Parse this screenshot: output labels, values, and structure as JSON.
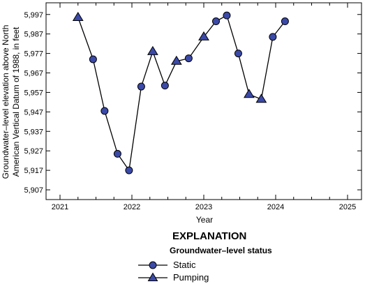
{
  "chart_data": {
    "type": "line",
    "title": "",
    "xlabel": "Year",
    "ylabel_lines": [
      "Groundwater–level elevation above North",
      "American Vertical Datum of 1988, in feet"
    ],
    "x_ticks": [
      "2021",
      "2022",
      "2023",
      "2024",
      "2025"
    ],
    "y_ticks": [
      "5,907",
      "5,917",
      "5,927",
      "5,937",
      "5,947",
      "5,957",
      "5,967",
      "5,977",
      "5,987",
      "5,997"
    ],
    "xlim": [
      2021,
      2025
    ],
    "ylim": [
      5902,
      6003
    ],
    "grid": false,
    "colors": {
      "marker_fill": "#3b4aa8",
      "marker_stroke": "#000000",
      "line": "#000000"
    },
    "points": [
      {
        "x": 2021.25,
        "y": 5995.5,
        "status": "Pumping"
      },
      {
        "x": 2021.46,
        "y": 5974.0,
        "status": "Static"
      },
      {
        "x": 2021.62,
        "y": 5947.5,
        "status": "Static"
      },
      {
        "x": 2021.8,
        "y": 5925.5,
        "status": "Static"
      },
      {
        "x": 2021.96,
        "y": 5917.0,
        "status": "Static"
      },
      {
        "x": 2022.13,
        "y": 5960.0,
        "status": "Static"
      },
      {
        "x": 2022.29,
        "y": 5978.0,
        "status": "Pumping"
      },
      {
        "x": 2022.46,
        "y": 5960.5,
        "status": "Static"
      },
      {
        "x": 2022.62,
        "y": 5973.0,
        "status": "Pumping"
      },
      {
        "x": 2022.79,
        "y": 5974.5,
        "status": "Static"
      },
      {
        "x": 2023.0,
        "y": 5985.5,
        "status": "Pumping"
      },
      {
        "x": 2023.17,
        "y": 5993.5,
        "status": "Static"
      },
      {
        "x": 2023.32,
        "y": 5996.5,
        "status": "Static"
      },
      {
        "x": 2023.48,
        "y": 5977.0,
        "status": "Static"
      },
      {
        "x": 2023.63,
        "y": 5956.0,
        "status": "Pumping"
      },
      {
        "x": 2023.8,
        "y": 5953.5,
        "status": "Pumping"
      },
      {
        "x": 2023.96,
        "y": 5985.5,
        "status": "Static"
      },
      {
        "x": 2024.13,
        "y": 5993.5,
        "status": "Static"
      }
    ]
  },
  "legend": {
    "heading": "EXPLANATION",
    "subheading": "Groundwater–level status",
    "items": [
      {
        "label": "Static",
        "marker": "circle"
      },
      {
        "label": "Pumping",
        "marker": "triangle"
      }
    ]
  }
}
